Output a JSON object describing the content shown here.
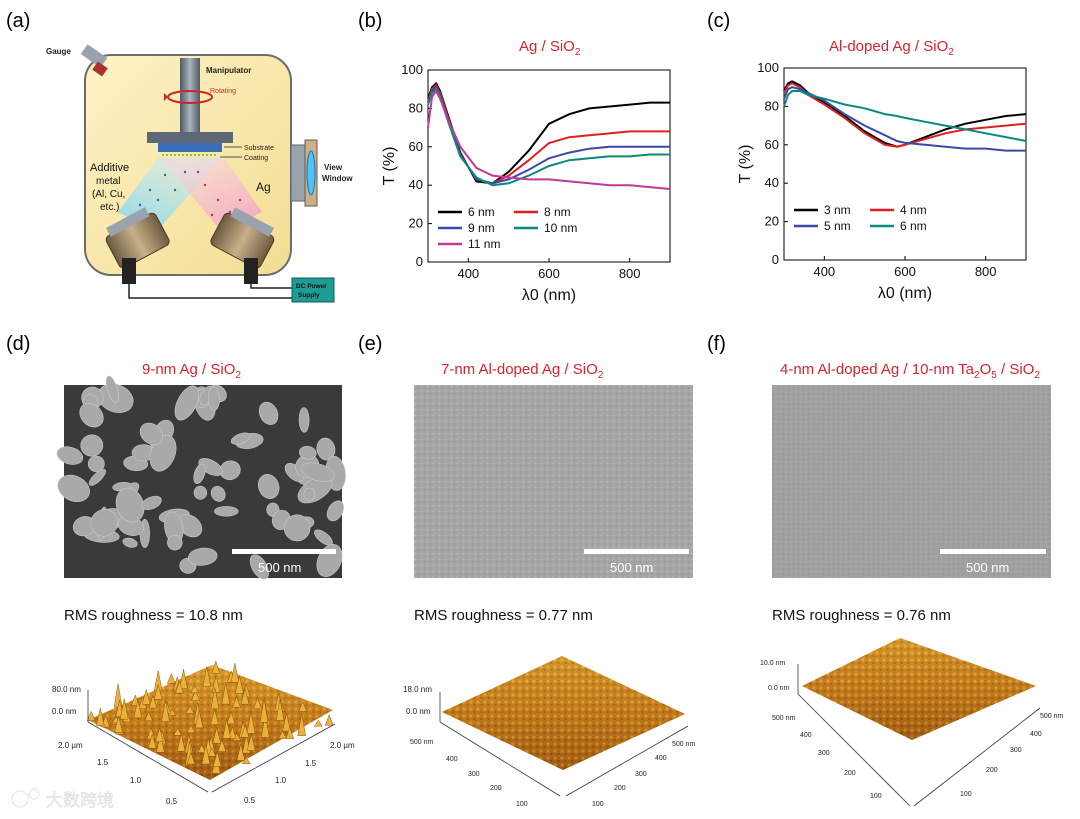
{
  "panels": {
    "a": {
      "letter": "(a)",
      "labels": {
        "gauge": "Gauge",
        "manipulator": "Manipulator",
        "rotating": "Rotating",
        "substrate": "Substrate",
        "coating": "Coating",
        "view_window_1": "View",
        "view_window_2": "Window",
        "additive_1": "Additive",
        "additive_2": "metal",
        "additive_3": "(Al, Cu,",
        "additive_4": "etc.)",
        "ag": "Ag",
        "dc_1": "DC Power",
        "dc_2": "Supply"
      }
    },
    "b": {
      "letter": "(b)",
      "title_main": "Ag / SiO",
      "title_sub": "2"
    },
    "c": {
      "letter": "(c)",
      "title_main": "Al-doped Ag / SiO",
      "title_sub": "2"
    },
    "d": {
      "letter": "(d)",
      "title_main": "9-nm Ag / SiO",
      "title_sub": "2",
      "scale": "500 nm",
      "rms": "RMS roughness = 10.8 nm",
      "afm": {
        "z_top": "80.0 nm",
        "z_zero": "0.0 nm",
        "left_ticks": [
          "2.0 µm",
          "1.5",
          "1.0",
          "0.5"
        ],
        "right_ticks": [
          "2.0 µm",
          "1.5",
          "1.0",
          "0.5"
        ]
      }
    },
    "e": {
      "letter": "(e)",
      "title_main": "7-nm Al-doped Ag / SiO",
      "title_sub": "2",
      "scale": "500 nm",
      "rms": "RMS roughness = 0.77 nm",
      "afm": {
        "z_top": "18.0 nm",
        "z_zero": "0.0 nm",
        "left_ticks": [
          "500 nm",
          "400",
          "300",
          "200",
          "100"
        ],
        "right_ticks": [
          "500 nm",
          "400",
          "300",
          "200",
          "100"
        ]
      }
    },
    "f": {
      "letter": "(f)",
      "title_p1": "4-nm Al-doped Ag / 10-nm Ta",
      "title_sub1": "2",
      "title_p2": "O",
      "title_sub2": "5",
      "title_p3": " / SiO",
      "title_sub3": "2",
      "scale": "500 nm",
      "rms": "RMS roughness = 0.76 nm",
      "afm": {
        "z_top": "10.0 nm",
        "z_zero": "0.0 nm",
        "left_ticks": [
          "500 nm",
          "400",
          "300",
          "200",
          "100"
        ],
        "right_ticks": [
          "500 nm",
          "400",
          "300",
          "200",
          "100"
        ]
      }
    }
  },
  "watermark": "大数跨境",
  "chart_data": [
    {
      "id": "b",
      "type": "line",
      "title": "Ag / SiO2",
      "xlabel": "λ0 (nm)",
      "ylabel": "T (%)",
      "xlim": [
        300,
        900
      ],
      "ylim": [
        0,
        100
      ],
      "xticks": [
        400,
        600,
        800
      ],
      "yticks": [
        0,
        20,
        40,
        60,
        80,
        100
      ],
      "legend": "bottom-left",
      "series": [
        {
          "name": "6 nm",
          "color": "#000000",
          "x": [
            300,
            310,
            320,
            330,
            350,
            380,
            420,
            460,
            500,
            550,
            600,
            650,
            700,
            750,
            800,
            850,
            900
          ],
          "y": [
            85,
            91,
            93,
            89,
            76,
            57,
            42,
            41,
            47,
            58,
            72,
            77,
            80,
            81,
            82,
            83,
            83
          ]
        },
        {
          "name": "8 nm",
          "color": "#e02020",
          "x": [
            300,
            310,
            320,
            330,
            350,
            380,
            420,
            460,
            500,
            550,
            600,
            650,
            700,
            750,
            800,
            850,
            900
          ],
          "y": [
            84,
            90,
            92,
            88,
            75,
            56,
            43,
            41,
            45,
            53,
            62,
            65,
            66,
            67,
            68,
            68,
            68
          ]
        },
        {
          "name": "9 nm",
          "color": "#3b48a8",
          "x": [
            300,
            310,
            320,
            330,
            350,
            380,
            420,
            460,
            500,
            550,
            600,
            650,
            700,
            750,
            800,
            850,
            900
          ],
          "y": [
            83,
            89,
            91,
            87,
            74,
            56,
            43,
            41,
            43,
            48,
            54,
            57,
            59,
            60,
            60,
            60,
            60
          ]
        },
        {
          "name": "10 nm",
          "color": "#0a8a7a",
          "x": [
            300,
            310,
            320,
            330,
            350,
            380,
            420,
            460,
            500,
            550,
            600,
            650,
            700,
            750,
            800,
            850,
            900
          ],
          "y": [
            82,
            88,
            90,
            86,
            73,
            55,
            44,
            40,
            41,
            45,
            50,
            53,
            54,
            55,
            55,
            56,
            56
          ]
        },
        {
          "name": "11 nm",
          "color": "#c0399b",
          "x": [
            300,
            310,
            320,
            330,
            350,
            380,
            420,
            460,
            500,
            550,
            600,
            650,
            700,
            750,
            800,
            850,
            900
          ],
          "y": [
            70,
            86,
            89,
            85,
            74,
            60,
            49,
            45,
            44,
            43,
            43,
            42,
            41,
            40,
            40,
            39,
            38
          ]
        }
      ]
    },
    {
      "id": "c",
      "type": "line",
      "title": "Al-doped Ag / SiO2",
      "xlabel": "λ0 (nm)",
      "ylabel": "T (%)",
      "xlim": [
        300,
        900
      ],
      "ylim": [
        0,
        100
      ],
      "xticks": [
        400,
        600,
        800
      ],
      "yticks": [
        0,
        20,
        40,
        60,
        80,
        100
      ],
      "legend": "bottom-left",
      "series": [
        {
          "name": "3 nm",
          "color": "#000000",
          "x": [
            300,
            310,
            320,
            340,
            360,
            400,
            450,
            500,
            550,
            580,
            600,
            650,
            700,
            750,
            800,
            850,
            900
          ],
          "y": [
            88,
            92,
            93,
            91,
            87,
            82,
            75,
            67,
            61,
            59,
            60,
            64,
            68,
            71,
            73,
            75,
            76
          ]
        },
        {
          "name": "4 nm",
          "color": "#e02020",
          "x": [
            300,
            310,
            320,
            340,
            360,
            400,
            450,
            500,
            550,
            580,
            600,
            650,
            700,
            750,
            800,
            850,
            900
          ],
          "y": [
            87,
            91,
            92,
            90,
            86,
            81,
            74,
            66,
            60,
            59,
            60,
            63,
            66,
            68,
            69,
            70,
            71
          ]
        },
        {
          "name": "5 nm",
          "color": "#3b48a8",
          "x": [
            300,
            310,
            320,
            340,
            360,
            400,
            450,
            500,
            550,
            580,
            600,
            650,
            700,
            750,
            800,
            850,
            900
          ],
          "y": [
            84,
            89,
            90,
            89,
            87,
            83,
            76,
            70,
            65,
            62,
            61,
            60,
            59,
            58,
            58,
            57,
            57
          ]
        },
        {
          "name": "6 nm",
          "color": "#0a8a7a",
          "x": [
            300,
            310,
            320,
            340,
            360,
            400,
            450,
            500,
            550,
            580,
            600,
            650,
            700,
            750,
            800,
            850,
            900
          ],
          "y": [
            80,
            86,
            88,
            88,
            86,
            84,
            81,
            79,
            76,
            75,
            74,
            72,
            70,
            68,
            66,
            64,
            62
          ]
        }
      ]
    }
  ]
}
